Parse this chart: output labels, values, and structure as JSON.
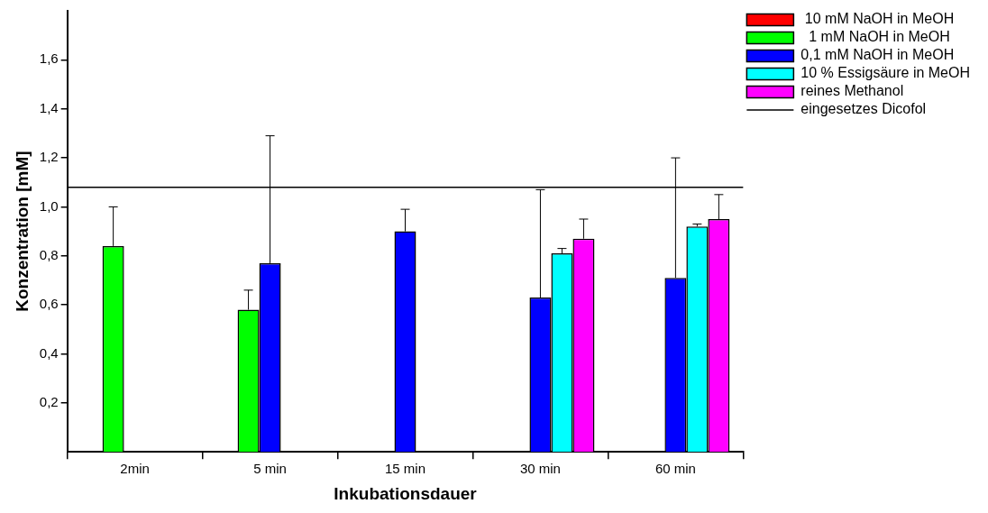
{
  "chart_data": {
    "type": "bar",
    "xlabel": "Inkubationsdauer",
    "ylabel": "Konzentration [mM]",
    "categories": [
      "2min",
      "5 min",
      "15 min",
      "30 min",
      "60 min"
    ],
    "series": [
      {
        "name": " 10 mM NaOH in MeOH",
        "color": "#ff0000",
        "values": [
          null,
          null,
          null,
          null,
          null
        ]
      },
      {
        "name": "  1 mM NaOH in MeOH",
        "color": "#00ff00",
        "values": [
          0.84,
          0.58,
          null,
          null,
          null
        ],
        "errors": [
          [
            0.84,
            1.0
          ],
          [
            0.58,
            0.66
          ],
          null,
          null,
          null
        ]
      },
      {
        "name": "0,1 mM NaOH in MeOH",
        "color": "#0000ff",
        "values": [
          null,
          0.77,
          0.9,
          0.63,
          0.71
        ],
        "errors": [
          null,
          [
            0.77,
            1.29
          ],
          [
            0.9,
            0.99
          ],
          [
            0.63,
            1.07
          ],
          [
            0.71,
            1.2
          ]
        ]
      },
      {
        "name": "10 % Essigsäure in MeOH",
        "color": "#00ffff",
        "values": [
          null,
          null,
          null,
          0.81,
          0.92
        ],
        "errors": [
          null,
          null,
          null,
          [
            0.81,
            0.83
          ],
          [
            0.92,
            0.93
          ]
        ]
      },
      {
        "name": "reines Methanol",
        "color": "#ff00ff",
        "values": [
          null,
          null,
          null,
          0.87,
          0.95
        ],
        "errors": [
          null,
          null,
          null,
          [
            0.87,
            0.95
          ],
          [
            0.95,
            1.05
          ]
        ]
      }
    ],
    "ylim": [
      0,
      1.8
    ],
    "yticks": [
      {
        "value": 0.2,
        "label": "0,2"
      },
      {
        "value": 0.4,
        "label": "0,4"
      },
      {
        "value": 0.6,
        "label": "0,6"
      },
      {
        "value": 0.8,
        "label": "0,8"
      },
      {
        "value": 1.0,
        "label": "1,0"
      },
      {
        "value": 1.2,
        "label": "1,2"
      },
      {
        "value": 1.4,
        "label": "1,4"
      },
      {
        "value": 1.6,
        "label": "1,6"
      }
    ],
    "ref_lines": [
      {
        "axis": "y",
        "value": 1.08,
        "label": "eingesetzes Dicofol",
        "color": "#000000",
        "line_style": "solid"
      }
    ],
    "grid": false,
    "legend": "top right"
  }
}
